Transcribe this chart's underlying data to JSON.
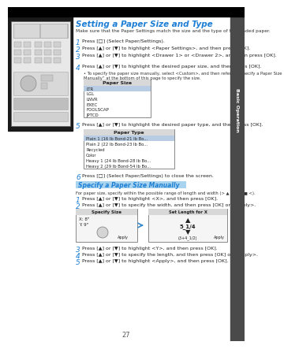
{
  "title": "Setting a Paper Size and Type",
  "title_color": "#1e7fd4",
  "bg_color": "#ffffff",
  "sidebar_color": "#4a4a4a",
  "sidebar_text": "Basic Operation",
  "top_bar_color": "#000000",
  "subtitle": "Make sure that the Paper Settings match the size and the type of the loaded paper.",
  "steps": [
    {
      "num": "1",
      "text": "Press [□] (Select Paper/Settings)."
    },
    {
      "num": "2",
      "text": "Press [▲] or [▼] to highlight <Paper Settings>, and then press [OK]."
    },
    {
      "num": "3",
      "text": "Press [▲] or [▼] to highlight <Drawer 1> or <Drawer 2>, and then press [OK]."
    },
    {
      "num": "4",
      "text": "Press [▲] or [▼] to highlight the desired paper size, and then press [OK]."
    },
    {
      "num": "5",
      "text": "Press [▲] or [▼] to highlight the desired paper type, and then press [OK]."
    },
    {
      "num": "6",
      "text": "Press [□] (Select Paper/Settings) to close the screen."
    }
  ],
  "step4_note": "To specify the paper size manually, select <Custom>, and then refer to “Specify a Paper Size Manually” at the bottom of this page to specify the size.",
  "paper_size_box": {
    "title": "Paper Size",
    "items": [
      "LTR",
      "LGL",
      "LNVR",
      "EXEC",
      "FOOLSCAP",
      "JPTCD"
    ]
  },
  "paper_type_box": {
    "title": "Paper Type",
    "items": [
      "Plain 1 (16 lb Bond-21 lb Bo...",
      "Plain 2 (22 lb Bond-23 lb Bo...",
      "Recycled",
      "Color",
      "Heavy 1 (24 lb Bond-28 lb Bo...",
      "Heavy 2 (29 lb Bond-54 lb Bo..."
    ]
  },
  "section2_title": "Specify a Paper Size Manually",
  "section2_title_bg": "#a8d4f0",
  "section2_subtitle": "For paper size, specify within the possible range of length and width (> ▲ > x < ■ <).",
  "section2_steps": [
    {
      "num": "1",
      "text": "Press [▲] or [▼] to highlight <X>, and then press [OK]."
    },
    {
      "num": "2",
      "text": "Press [▲] or [▼] to specify the width, and then press [OK] or <Apply>."
    },
    {
      "num": "3",
      "text": "Press [▲] or [▼] to highlight <Y>, and then press [OK]."
    },
    {
      "num": "4",
      "text": "Press [▲] or [▼] to specify the length, and then press [OK] or <Apply>."
    },
    {
      "num": "5",
      "text": "Press [▲] or [▼] to highlight <Apply>, and then press [OK]."
    }
  ],
  "box1_title": "Specify Size",
  "box1_row1": "X: 8\"",
  "box1_row2": "Y: 9\"",
  "box1_apply": "Apply",
  "box2_title": "Set Length for X",
  "box2_up": "▲",
  "box2_val": "5_1/4",
  "box2_down": "▼",
  "box2_sub": "(3+4_1/2)",
  "box2_apply": "Apply",
  "page_number": "27"
}
